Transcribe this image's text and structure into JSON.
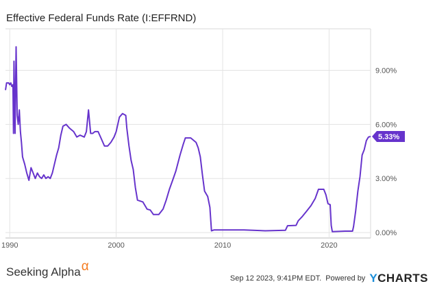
{
  "chart_data": {
    "type": "line",
    "title": "Effective Federal Funds Rate (I:EFFRND)",
    "xlabel": "",
    "ylabel": "",
    "xlim": [
      1989.6,
      2023.9
    ],
    "ylim": [
      -0.3,
      11.3
    ],
    "x_ticks": [
      {
        "value": 1990,
        "label": "1990"
      },
      {
        "value": 2000,
        "label": "2000"
      },
      {
        "value": 2010,
        "label": "2010"
      },
      {
        "value": 2020,
        "label": "2020"
      }
    ],
    "y_ticks": [
      {
        "value": 0,
        "label": "0.00%"
      },
      {
        "value": 3,
        "label": "3.00%"
      },
      {
        "value": 6,
        "label": "6.00%"
      },
      {
        "value": 9,
        "label": "9.00%"
      }
    ],
    "grid": true,
    "series": [
      {
        "color": "#6633cc",
        "last_value_label": "5.33%",
        "x": [
          1989.6,
          1989.7,
          1989.9,
          1990.0,
          1990.1,
          1990.2,
          1990.3,
          1990.35,
          1990.4,
          1990.5,
          1990.6,
          1990.7,
          1990.8,
          1990.9,
          1991.0,
          1991.1,
          1991.2,
          1991.3,
          1991.4,
          1991.6,
          1991.8,
          1992.0,
          1992.2,
          1992.4,
          1992.6,
          1992.8,
          1993.0,
          1993.2,
          1993.4,
          1993.6,
          1993.8,
          1994.0,
          1994.2,
          1994.4,
          1994.6,
          1994.8,
          1995.0,
          1995.3,
          1995.6,
          1996.0,
          1996.3,
          1996.6,
          1997.0,
          1997.2,
          1997.4,
          1997.6,
          1997.8,
          1998.0,
          1998.3,
          1998.6,
          1998.9,
          1999.2,
          1999.5,
          1999.8,
          2000.0,
          2000.3,
          2000.6,
          2000.9,
          2001.0,
          2001.2,
          2001.4,
          2001.6,
          2001.8,
          2002.0,
          2002.5,
          2002.9,
          2003.2,
          2003.5,
          2004.0,
          2004.4,
          2004.7,
          2005.0,
          2005.3,
          2005.6,
          2006.0,
          2006.3,
          2006.5,
          2007.0,
          2007.5,
          2007.7,
          2007.9,
          2008.1,
          2008.3,
          2008.6,
          2008.8,
          2008.95,
          2009.2,
          2010.0,
          2012.0,
          2014.0,
          2015.9,
          2016.1,
          2016.9,
          2017.1,
          2017.5,
          2017.9,
          2018.3,
          2018.7,
          2019.0,
          2019.5,
          2019.7,
          2019.9,
          2020.1,
          2020.2,
          2020.3,
          2021.5,
          2022.2,
          2022.3,
          2022.5,
          2022.7,
          2022.9,
          2023.1,
          2023.3,
          2023.5,
          2023.7,
          2023.9
        ],
        "y": [
          7.9,
          8.3,
          8.3,
          8.2,
          8.3,
          8.1,
          8.2,
          5.5,
          9.5,
          5.5,
          10.3,
          6.5,
          6.0,
          6.8,
          5.6,
          5.0,
          4.2,
          4.0,
          3.8,
          3.3,
          2.9,
          3.6,
          3.3,
          3.0,
          3.3,
          3.1,
          3.0,
          3.2,
          3.0,
          3.1,
          3.0,
          3.3,
          3.8,
          4.3,
          4.7,
          5.4,
          5.9,
          6.0,
          5.8,
          5.6,
          5.3,
          5.4,
          5.3,
          5.6,
          6.8,
          5.5,
          5.5,
          5.6,
          5.6,
          5.2,
          4.8,
          4.8,
          5.0,
          5.3,
          5.6,
          6.4,
          6.6,
          6.5,
          5.8,
          4.8,
          4.0,
          3.5,
          2.5,
          1.8,
          1.7,
          1.3,
          1.25,
          1.0,
          1.0,
          1.3,
          1.8,
          2.4,
          2.9,
          3.4,
          4.3,
          4.9,
          5.25,
          5.25,
          5.0,
          4.7,
          4.2,
          3.2,
          2.3,
          2.0,
          1.4,
          0.1,
          0.15,
          0.15,
          0.15,
          0.1,
          0.13,
          0.38,
          0.4,
          0.65,
          0.9,
          1.2,
          1.5,
          1.9,
          2.4,
          2.4,
          2.1,
          1.6,
          1.55,
          0.4,
          0.05,
          0.08,
          0.08,
          0.33,
          1.2,
          2.3,
          3.1,
          4.3,
          4.6,
          5.1,
          5.3,
          5.33
        ]
      }
    ]
  },
  "footer": {
    "brand": "Seeking Alpha",
    "brand_symbol": "α",
    "timestamp": "Sep 12 2023, 9:41PM EDT.",
    "powered_by": "Powered by",
    "provider_y": "Y",
    "provider_rest": "CHARTS"
  }
}
